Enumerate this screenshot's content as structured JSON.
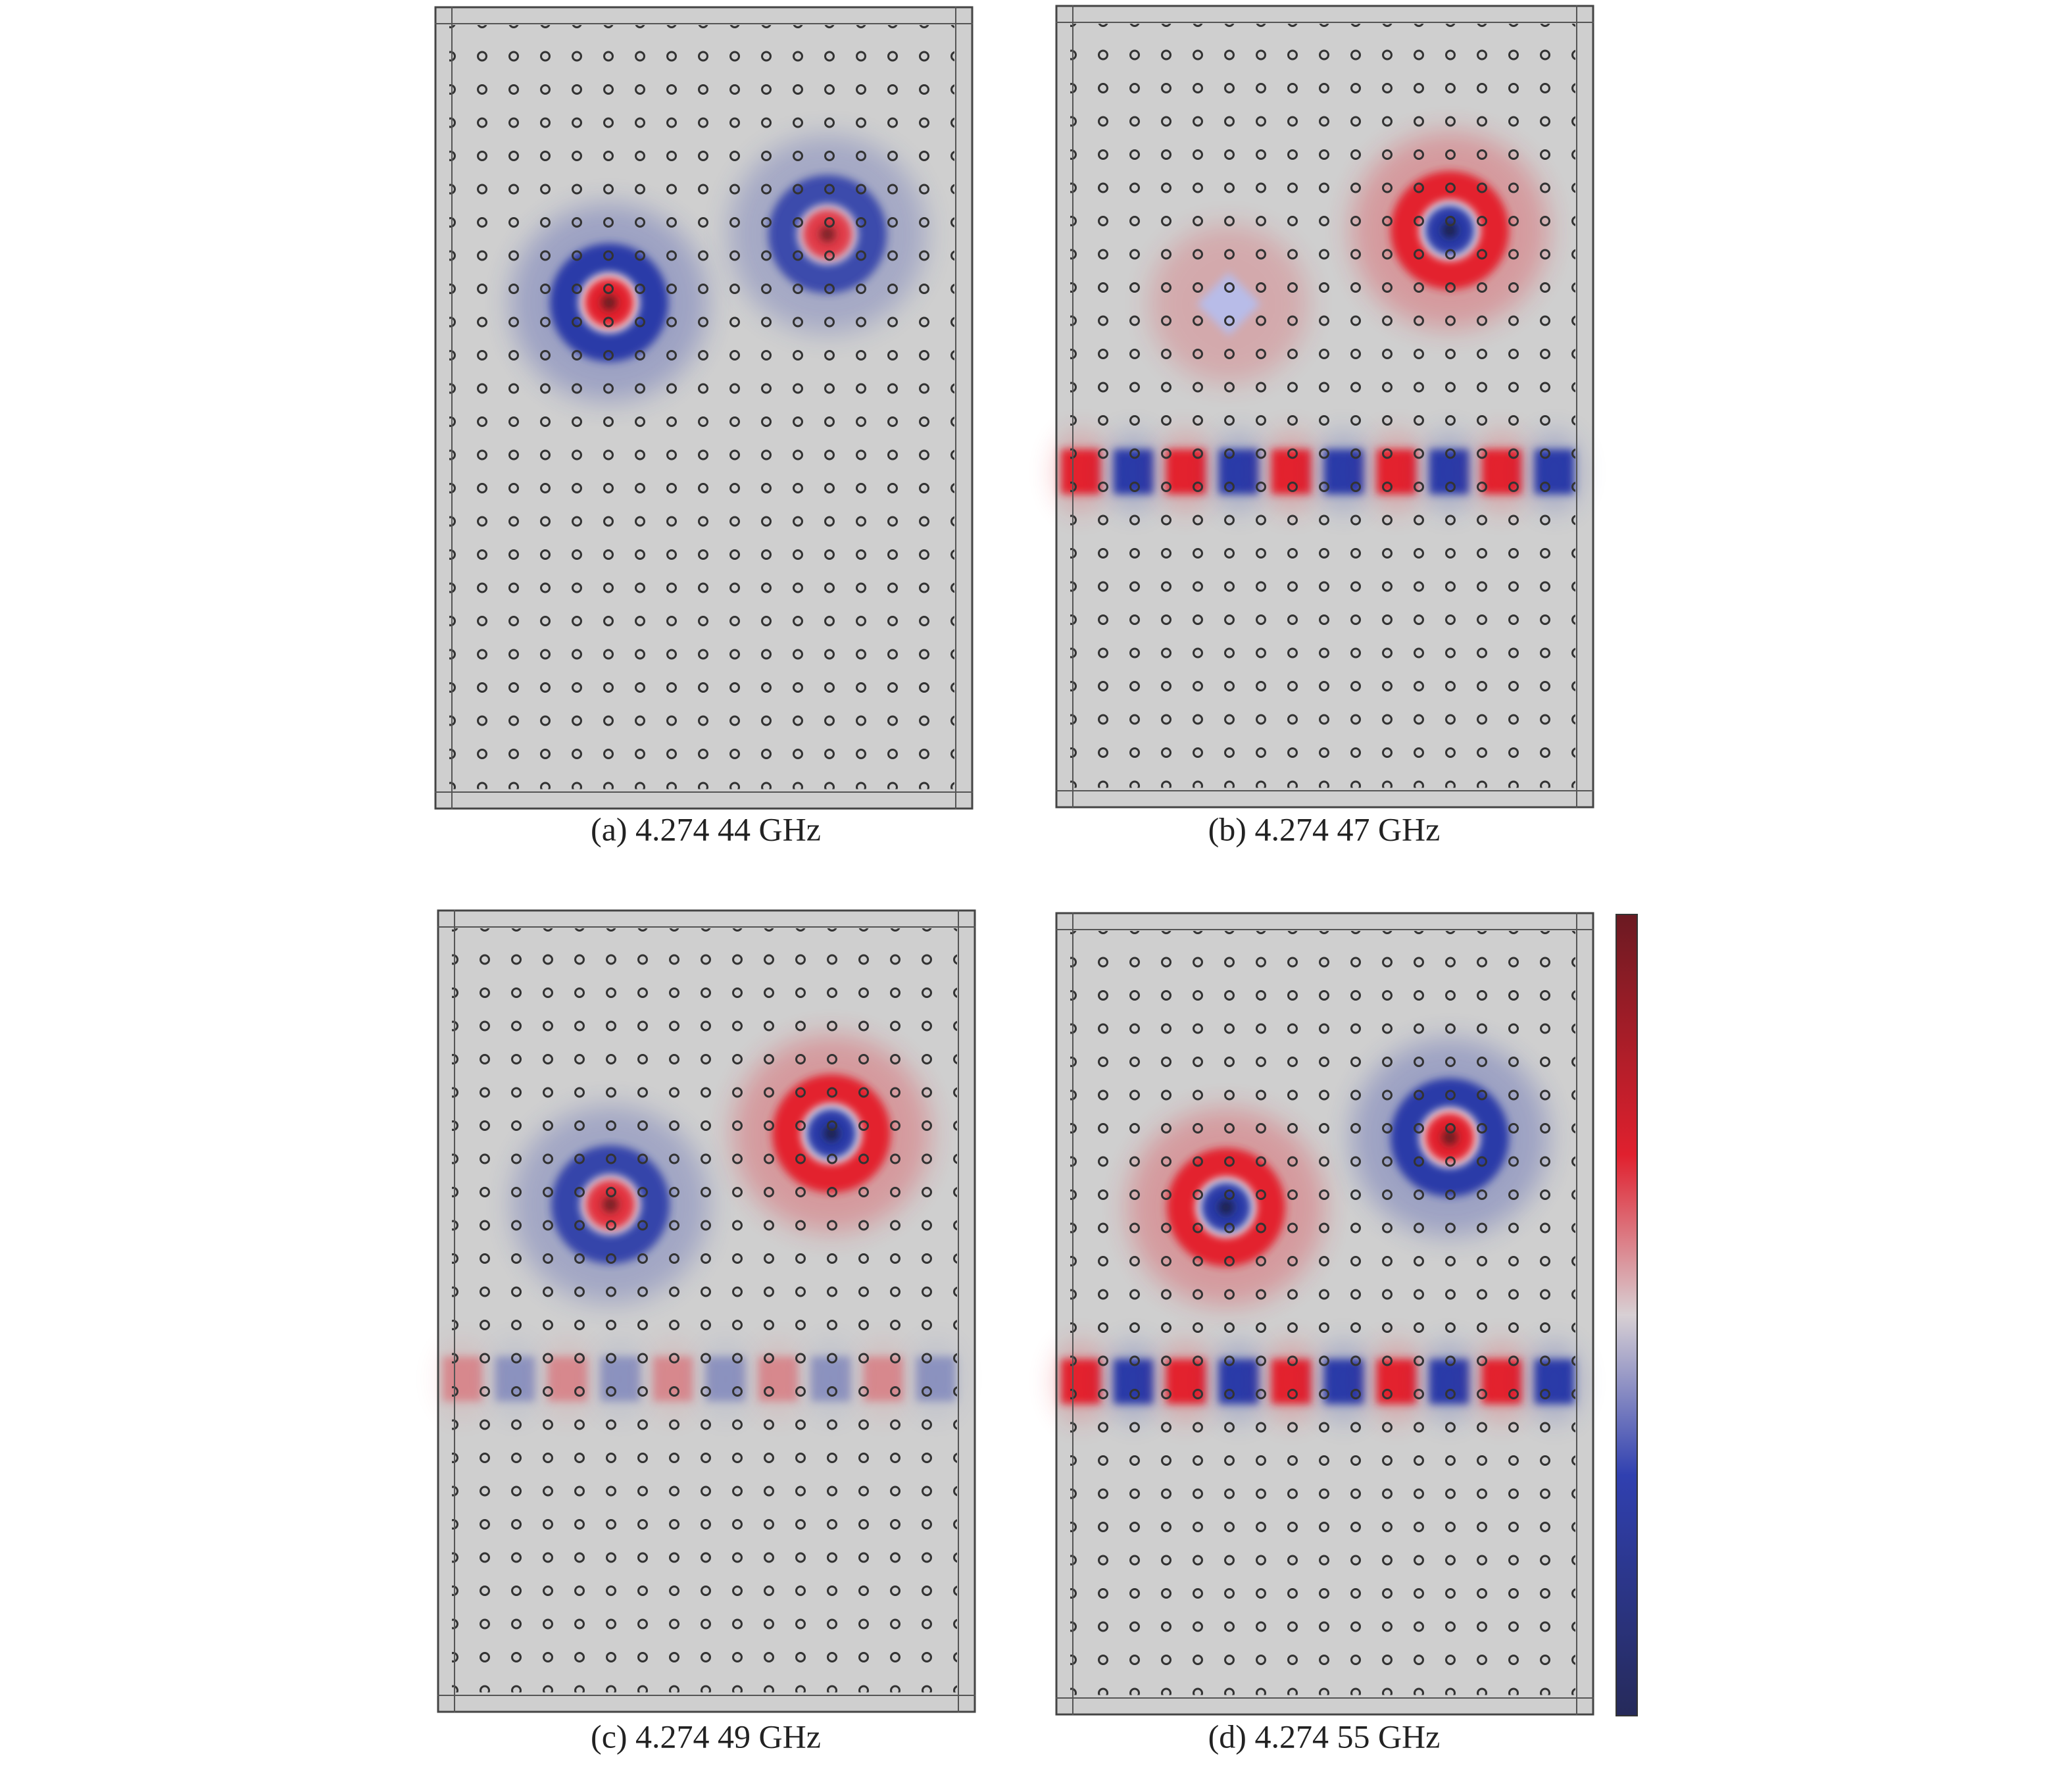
{
  "figure": {
    "panels": [
      {
        "caption": "(a) 4.274 44 GHz"
      },
      {
        "caption": "(b) 4.274 47 GHz"
      },
      {
        "caption": "(c) 4.274 49 GHz"
      },
      {
        "caption": "(d) 4.274 55 GHz"
      }
    ]
  }
}
